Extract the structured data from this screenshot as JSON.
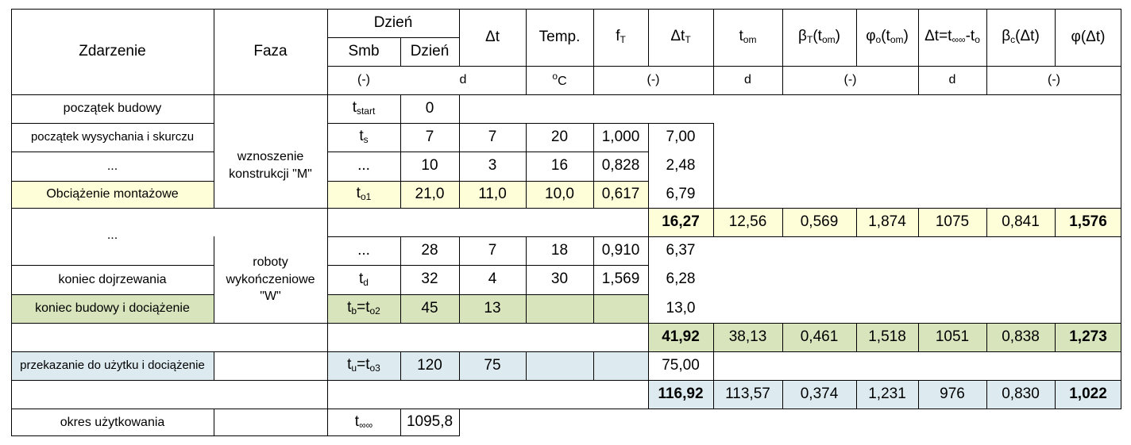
{
  "header": {
    "zdarzenie": "Zdarzenie",
    "faza": "Faza",
    "dzien_group": "Dzień",
    "smb": "Smb",
    "dzien": "Dzień",
    "dt": "Δt",
    "temp": "Temp.",
    "ft": "f",
    "ft_sub": "T",
    "dtt": "Δt",
    "dtt_sub": "T",
    "tom": "t",
    "tom_sub": "om",
    "betaT": "β",
    "betaT_sub": "T",
    "betaT_arg": "(t",
    "betaT_arg_sub": "om",
    "betaT_close": ")",
    "phio": "φ",
    "phio_sub": "o",
    "phio_arg": "(t",
    "phio_arg_sub": "om",
    "phio_close": ")",
    "dt_formula": "Δt=t",
    "dt_formula_sub1": "∞∞",
    "dt_formula_mid": "-t",
    "dt_formula_sub2": "o",
    "betac": "β",
    "betac_sub": "c",
    "betac_arg": "(Δt)",
    "phidt": "φ(Δt)"
  },
  "units": {
    "smb": "(-)",
    "dzien": "d",
    "temp_sup": "o",
    "temp": "C",
    "ft_dtt": "(-)",
    "tom": "d",
    "beta_phi": "(-)",
    "dt_formula": "d",
    "betac_phi": "(-)"
  },
  "rows": {
    "r1": {
      "event": "początek  budowy",
      "smb": "t",
      "smb_sub": "start",
      "day": "0"
    },
    "r2": {
      "event": "początek  wysychania i skurczu",
      "smb": "t",
      "smb_sub": "s",
      "day": "7",
      "dt": "7",
      "temp": "20",
      "ft": "1,000",
      "dtt": "7,00"
    },
    "r3": {
      "event": "...",
      "smb": "...",
      "day": "10",
      "dt": "3",
      "temp": "16",
      "ft": "0,828",
      "dtt": "2,48"
    },
    "r4": {
      "event": "Obciążenie  montażowe",
      "smb": "t",
      "smb_sub": "o1",
      "day": "21,0",
      "dt": "11,0",
      "temp": "10,0",
      "ft": "0,617",
      "dtt": "6,79"
    },
    "s1": {
      "dtt": "16,27",
      "tom": "12,56",
      "betaT": "0,569",
      "phio": "1,874",
      "dtf": "1075",
      "betac": "0,841",
      "phidt": "1,576"
    },
    "r5": {
      "event": "..."
    },
    "r6": {
      "smb": "...",
      "day": "28",
      "dt": "7",
      "temp": "18",
      "ft": "0,910",
      "dtt": "6,37"
    },
    "r7": {
      "event": "koniec dojrzewania",
      "smb": "t",
      "smb_sub": "d",
      "day": "32",
      "dt": "4",
      "temp": "30",
      "ft": "1,569",
      "dtt": "6,28"
    },
    "r8": {
      "event": "koniec budowy i dociążenie",
      "smb": "t",
      "smb_sub": "b",
      "smb2": "=t",
      "smb2_sub": "o2",
      "day": "45",
      "dt": "13",
      "dtt": "13,0"
    },
    "s2": {
      "dtt": "41,92",
      "tom": "38,13",
      "betaT": "0,461",
      "phio": "1,518",
      "dtf": "1051",
      "betac": "0,838",
      "phidt": "1,273"
    },
    "r9": {
      "event": "przekazanie do użytku i dociążenie",
      "smb": "t",
      "smb_sub": "u",
      "smb2": "=t",
      "smb2_sub": "o3",
      "day": "120",
      "dt": "75",
      "dtt": "75,00"
    },
    "s3": {
      "dtt": "116,92",
      "tom": "113,57",
      "betaT": "0,374",
      "phio": "1,231",
      "dtf": "976",
      "betac": "0,830",
      "phidt": "1,022"
    },
    "r10": {
      "event": "okres użytkowania",
      "smb": "t",
      "smb_sub": "∞∞",
      "day": "1095,8"
    }
  },
  "phases": {
    "m_line1": "wznoszenie",
    "m_line2": "konstrukcji  \"M\"",
    "w_line1": "roboty",
    "w_line2": "wykończeniowe",
    "w_line3": "\"W\""
  },
  "colors": {
    "yellow": "#fefed8",
    "green": "#d8e4bc",
    "blue": "#ddebf1"
  }
}
